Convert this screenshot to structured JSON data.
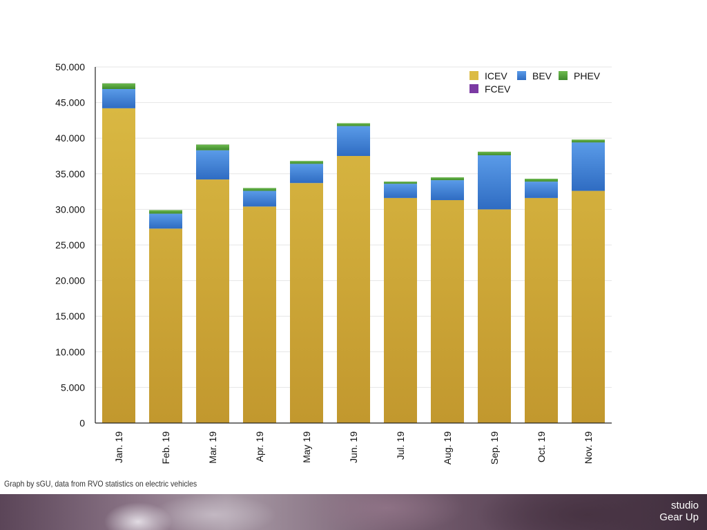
{
  "caption": "Graph by sGU, data from RVO statistics on electric vehicles",
  "brand": {
    "line1": "studio",
    "line2": "Gear Up"
  },
  "colors": {
    "ICEV_top": "#dcbc45",
    "ICEV_bottom": "#c2982e",
    "BEV_top": "#5a9be8",
    "BEV_bottom": "#2f6cc2",
    "PHEV_top": "#6dbb4e",
    "PHEV_bottom": "#3f8a2d",
    "FCEV": "#7b3aa3",
    "grid": "#e6e6e6",
    "axis": "#222222"
  },
  "chart_data": {
    "type": "bar",
    "stacked": true,
    "categories": [
      "Jan. 19",
      "Feb. 19",
      "Mar. 19",
      "Apr. 19",
      "May 19",
      "Jun. 19",
      "Jul. 19",
      "Aug. 19",
      "Sep. 19",
      "Oct. 19",
      "Nov. 19"
    ],
    "series": [
      {
        "name": "ICEV",
        "values": [
          44200,
          27300,
          34200,
          30400,
          33700,
          37500,
          31600,
          31300,
          30000,
          31600,
          32600
        ]
      },
      {
        "name": "BEV",
        "values": [
          2700,
          2100,
          4100,
          2200,
          2700,
          4200,
          2000,
          2800,
          7600,
          2300,
          6800
        ]
      },
      {
        "name": "PHEV",
        "values": [
          800,
          500,
          800,
          400,
          400,
          400,
          300,
          400,
          500,
          400,
          400
        ]
      },
      {
        "name": "FCEV",
        "values": [
          10,
          5,
          10,
          5,
          5,
          5,
          5,
          5,
          5,
          5,
          5
        ]
      }
    ],
    "ylim": [
      0,
      50000
    ],
    "yticks": [
      {
        "value": 0,
        "label": "0"
      },
      {
        "value": 5000,
        "label": "5.000"
      },
      {
        "value": 10000,
        "label": "10.000"
      },
      {
        "value": 15000,
        "label": "15.000"
      },
      {
        "value": 20000,
        "label": "20.000"
      },
      {
        "value": 25000,
        "label": "25.000"
      },
      {
        "value": 30000,
        "label": "30.000"
      },
      {
        "value": 35000,
        "label": "35.000"
      },
      {
        "value": 40000,
        "label": "40.000"
      },
      {
        "value": 45000,
        "label": "45.000"
      },
      {
        "value": 50000,
        "label": "50.000"
      }
    ],
    "grid": true,
    "legend_position": "top-right",
    "title": "",
    "xlabel": "",
    "ylabel": ""
  }
}
